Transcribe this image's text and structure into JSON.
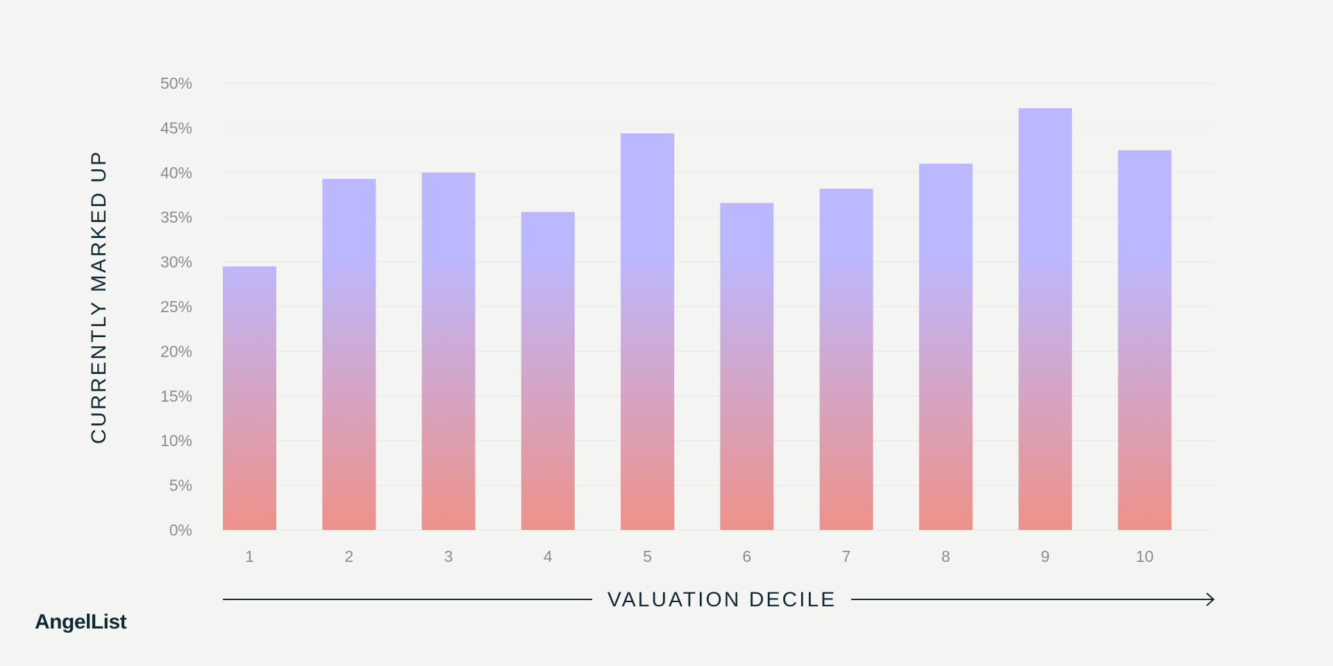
{
  "brand": {
    "logo_text": "AngelList"
  },
  "colors": {
    "background": "#f4f4f2",
    "bar_top": "#bbb8ff",
    "bar_bottom": "#ee9189",
    "grid": "#e6e6e4",
    "tick_text": "#8a8c8e",
    "title_text": "#0f2a33"
  },
  "chart_data": {
    "type": "bar",
    "title": "",
    "xlabel": "VALUATION DECILE",
    "ylabel": "CURRENTLY MARKED UP",
    "categories": [
      "1",
      "2",
      "3",
      "4",
      "5",
      "6",
      "7",
      "8",
      "9",
      "10"
    ],
    "values": [
      29.5,
      39.3,
      40.0,
      35.6,
      44.4,
      36.6,
      38.2,
      41.0,
      47.2,
      42.5
    ],
    "ylim": [
      0,
      50
    ],
    "yticks": [
      0,
      5,
      10,
      15,
      20,
      25,
      30,
      35,
      40,
      45,
      50
    ],
    "ytick_labels": [
      "0%",
      "5%",
      "10%",
      "15%",
      "20%",
      "25%",
      "30%",
      "35%",
      "40%",
      "45%",
      "50%"
    ],
    "grid": true,
    "legend": "none"
  }
}
